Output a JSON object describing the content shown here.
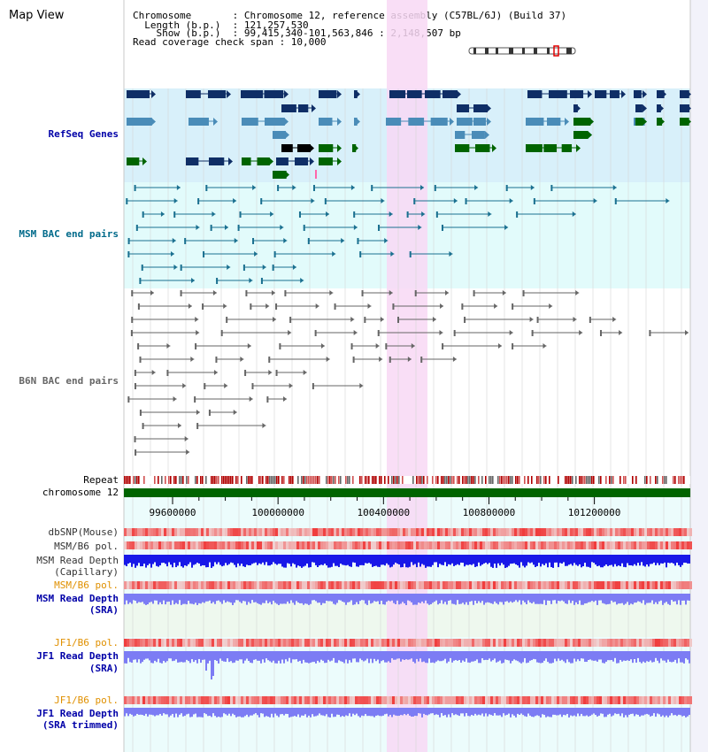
{
  "page": {
    "title": "Map View"
  },
  "header": {
    "lines": [
      "Chromosome       : Chromosome 12, reference assembly (C57BL/6J) (Build 37)",
      "  Length (b.p.)  : 121,257,530",
      "    Show (b.p.)  : 99,415,340-101,563,846 : 2,148,507 bp",
      "Read coverage check span : 10,000"
    ]
  },
  "tracks": {
    "refseq": "RefSeq Genes",
    "msm_bac": "MSM BAC end pairs",
    "b6n_bac": "B6N BAC end pairs",
    "repeat": "Repeat",
    "chromosome": "chromosome 12",
    "dbsnp": "dbSNP(Mouse)",
    "msm_b6_pol_1": "MSM/B6 pol.",
    "msm_depth_cap_1": "MSM Read Depth",
    "msm_depth_cap_2": "(Capillary)",
    "msm_b6_pol_2": "MSM/B6 pol.",
    "msm_depth_sra_1": "MSM Read Depth",
    "msm_depth_sra_2": "(SRA)",
    "jf1_b6_pol_1": "JF1/B6 pol.",
    "jf1_depth_sra_1": "JF1 Read Depth",
    "jf1_depth_sra_2": "(SRA)",
    "jf1_b6_pol_2": "JF1/B6 pol.",
    "jf1_depth_trim_1": "JF1 Read Depth",
    "jf1_depth_trim_2": "(SRA trimmed)"
  },
  "ruler": {
    "ticks": [
      {
        "pos": 99600000,
        "label": "99600000"
      },
      {
        "pos": 100000000,
        "label": "100000000"
      },
      {
        "pos": 100400000,
        "label": "100400000"
      },
      {
        "pos": 100800000,
        "label": "100800000"
      },
      {
        "pos": 101200000,
        "label": "101200000"
      }
    ]
  },
  "colors": {
    "refseq_bg": "#d8f0fa",
    "msm_bg": "#e2fbfb",
    "lower_bg": "#ecfcfc",
    "highlight": "#f8d8f4",
    "gene_navy": "#0f2e66",
    "gene_steel": "#4a8cb8",
    "gene_green": "#006400",
    "msm_line": "#1a7090",
    "b6n_line": "#666666",
    "chrom_green": "#006400",
    "pol_red": "#e04040",
    "depth_blue": "#1818e8",
    "depth_light": "#7c7cf4",
    "label_blue": "#0000a8",
    "label_orange": "#e09000",
    "label_teal": "#006a8a"
  }
}
